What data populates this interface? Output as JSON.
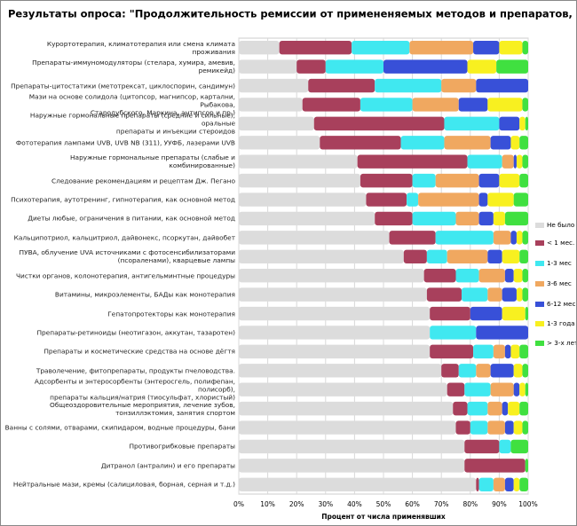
{
  "chart_data": {
    "type": "stacked-bar-horizontal",
    "title": "Результаты опроса: \"Продолжительность ремиссии от примененяемых методов и  препаратов, как основного средства\"",
    "x_label": "Процент от числа применявших",
    "categories": [
      "Курортотерапия, климатотерапия или смена климата проживания",
      "Препараты-иммуномодуляторы  (стелара, хумира, амевив, ремикейд)",
      "Препараты-цитостатики (метотрексат, циклоспорин, сандимун)",
      "Мази на основе солидола (цитопсор, магнипсор, картални, Рыбакова,\nСтародубского, Маркина, антипсор и пр.)",
      "Наружные гормональные препараты (средние и сильные), оральные\nпрепараты и инъекции стероидов",
      "Фототерапия лампами UVB, UVB NB (311), УУФБ, лазерами UVB",
      "Наружные гормональные препараты (слабые и комбинированные)",
      "Следование рекомендациям и рецептам Дж. Пегано",
      "Психотерапия, аутотренинг, гипнотерапия, как основной метод",
      "Диеты любые, ограничения в питании, как основной метод",
      "Кальципотриол, кальцитриол, дайвонекс, псоркутан, дайвобет",
      "ПУВА, облучение UVA источниками с фотосенсибилизаторами\n(псораленами), кварцевые лампы",
      "Чистки органов, колонотерапия, антигельминтные процедуры",
      "Витамины, микроэлементы, БАДы как монотерапия",
      "Гепатопротекторы как монотерапия",
      "Препараты-ретиноиды (неотигазон, аккутан, тазаротен)",
      "Препараты и косметические средства на основе дёгтя",
      "Траволечение, фитопрепараты, продукты пчеловодства.",
      "Адсорбенты и энтеросорбенты (энтеросгель, полифепан, полисорб),\nпрепараты кальция/натрия (тиосульфат, хлористый)",
      "Общеоздоровительные мероприятия, лечение зубов,\nтонзиллэктомия, занятия спортом",
      "Ванны с солями, отварами, скипидаром, водные процедуры, бани",
      "Противогрибковые препараты",
      "Дитранол (антралин) и его препараты",
      "Нейтральные мази, кремы (салициловая, борная, серная и т.д.)"
    ],
    "series": [
      {
        "name": "Не было",
        "color": "#dcdcdc",
        "values": [
          14,
          20,
          24,
          22,
          26,
          28,
          41,
          42,
          44,
          47,
          52,
          57,
          64,
          65,
          66,
          66,
          66,
          70,
          72,
          74,
          75,
          78,
          78,
          82
        ]
      },
      {
        "name": "< 1 мес.",
        "color": "#a8405c",
        "values": [
          25,
          10,
          23,
          20,
          45,
          28,
          38,
          18,
          14,
          13,
          16,
          8,
          11,
          12,
          14,
          0,
          15,
          6,
          6,
          5,
          5,
          12,
          21,
          1
        ]
      },
      {
        "name": "1-3 мес",
        "color": "#40e8f0",
        "values": [
          20,
          20,
          23,
          18,
          19,
          15,
          12,
          8,
          4,
          15,
          20,
          7,
          8,
          9,
          0,
          16,
          7,
          6,
          9,
          7,
          6,
          4,
          0,
          5
        ]
      },
      {
        "name": "3-6 мес",
        "color": "#f0a860",
        "values": [
          22,
          0,
          12,
          16,
          0,
          16,
          4,
          15,
          21,
          8,
          6,
          14,
          9,
          5,
          0,
          0,
          4,
          5,
          8,
          5,
          6,
          0,
          0,
          4
        ]
      },
      {
        "name": "6-12 мес",
        "color": "#3850d8",
        "values": [
          9,
          29,
          18,
          10,
          7,
          7,
          1,
          7,
          3,
          5,
          2,
          5,
          3,
          5,
          11,
          18,
          2,
          8,
          2,
          2,
          3,
          0,
          0,
          3
        ]
      },
      {
        "name": "1-3 года",
        "color": "#f8f020",
        "values": [
          8,
          10,
          0,
          12,
          2,
          3,
          2,
          7,
          9,
          4,
          2,
          6,
          3,
          2,
          8,
          0,
          3,
          3,
          2,
          4,
          3,
          0,
          0,
          2
        ]
      },
      {
        "name": "> 3-х лет",
        "color": "#40e040",
        "values": [
          2,
          11,
          0,
          2,
          1,
          3,
          2,
          3,
          5,
          8,
          2,
          3,
          2,
          2,
          1,
          0,
          3,
          2,
          1,
          3,
          2,
          6,
          1,
          3
        ]
      }
    ],
    "xlim": [
      0,
      100
    ],
    "xticks": [
      {
        "value": 0,
        "label": "0%"
      },
      {
        "value": 10,
        "label": "10%"
      },
      {
        "value": 20,
        "label": "20%"
      },
      {
        "value": 30,
        "label": "30%"
      },
      {
        "value": 40,
        "label": "40%"
      },
      {
        "value": 50,
        "label": "50%"
      },
      {
        "value": 60,
        "label": "60%"
      },
      {
        "value": 70,
        "label": "70%"
      },
      {
        "value": 80,
        "label": "80%"
      },
      {
        "value": 90,
        "label": "90%"
      },
      {
        "value": 100,
        "label": "100%"
      }
    ],
    "grid": true,
    "legend": "right"
  }
}
